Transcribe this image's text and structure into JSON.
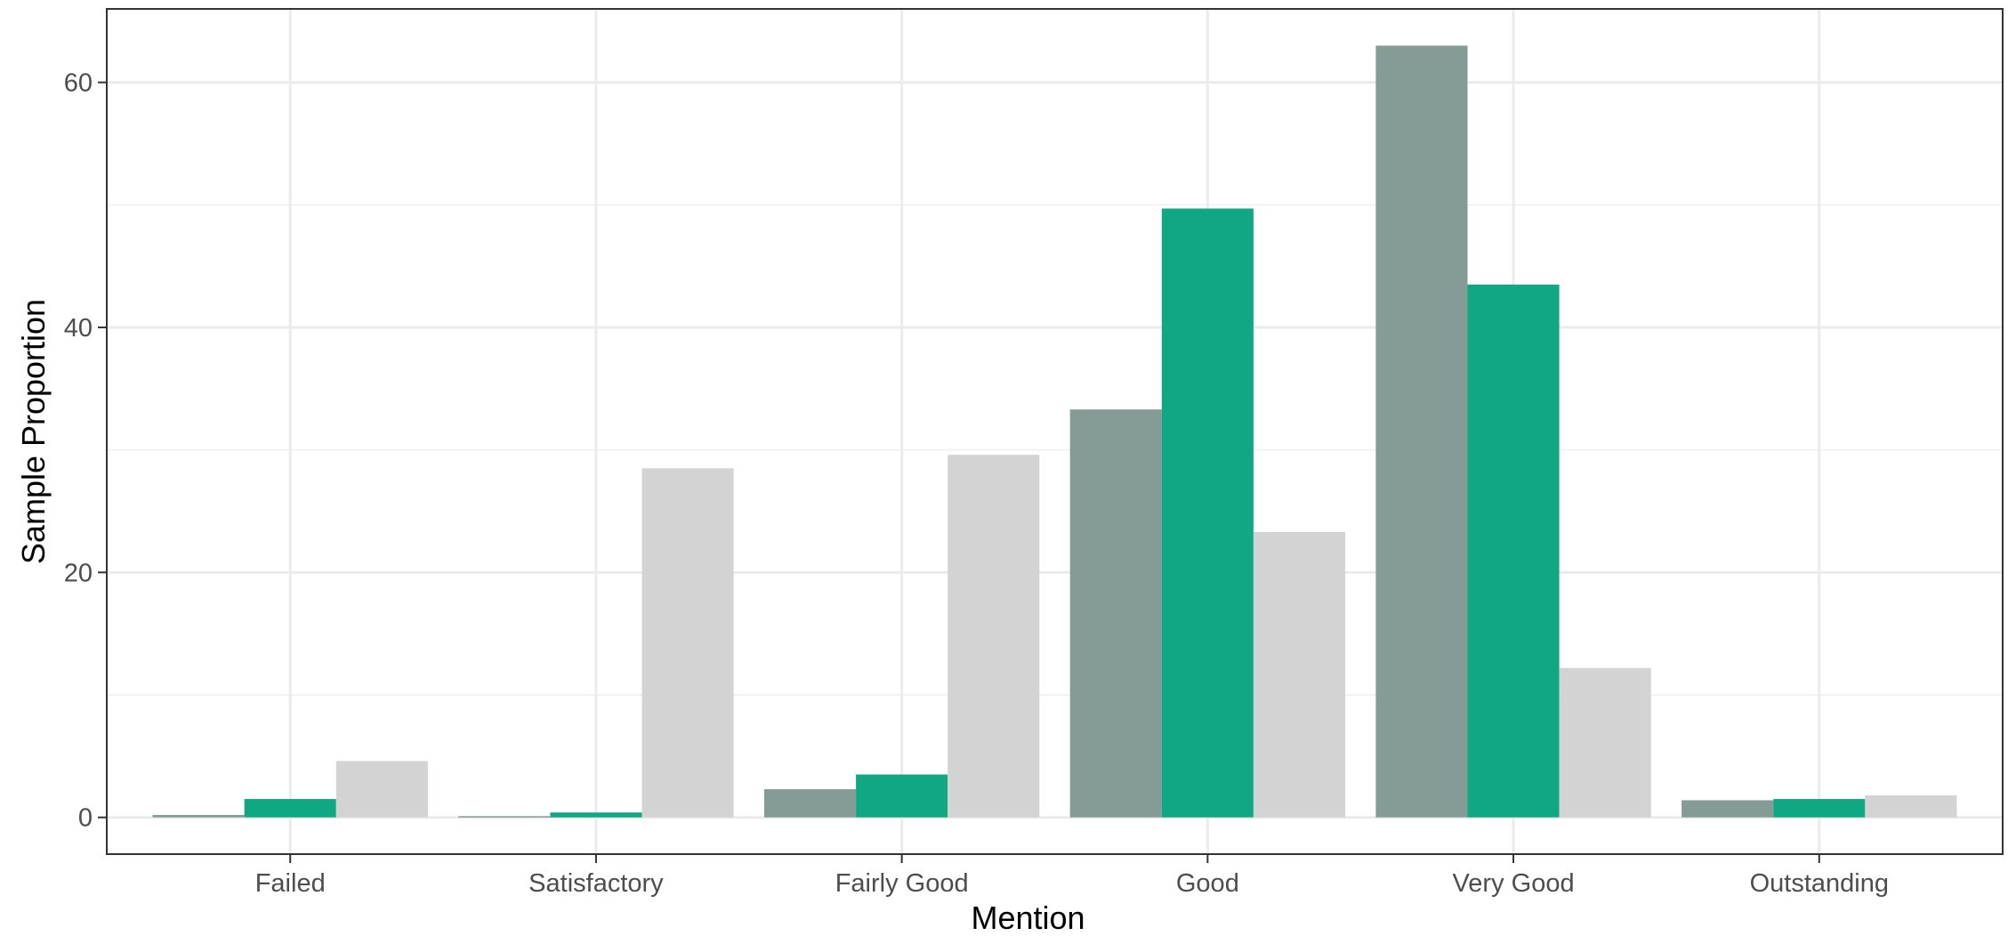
{
  "chart_data": {
    "type": "bar",
    "title": "",
    "xlabel": "Mention",
    "ylabel": "Sample Proportion",
    "categories": [
      "Failed",
      "Satisfactory",
      "Fairly Good",
      "Good",
      "Very Good",
      "Outstanding"
    ],
    "series": [
      {
        "color": "#859b95",
        "values": [
          0.2,
          0.1,
          2.3,
          33.3,
          63.0,
          1.4
        ]
      },
      {
        "color": "#10a882",
        "values": [
          1.5,
          0.4,
          3.5,
          49.7,
          43.5,
          1.5
        ]
      },
      {
        "color": "#d3d3d3",
        "values": [
          4.6,
          28.5,
          29.6,
          23.3,
          12.2,
          1.8
        ]
      }
    ],
    "ylim": [
      -3.0,
      66.0
    ],
    "yticks": [
      0,
      20,
      40,
      60
    ],
    "grid": true,
    "legend": "none"
  }
}
